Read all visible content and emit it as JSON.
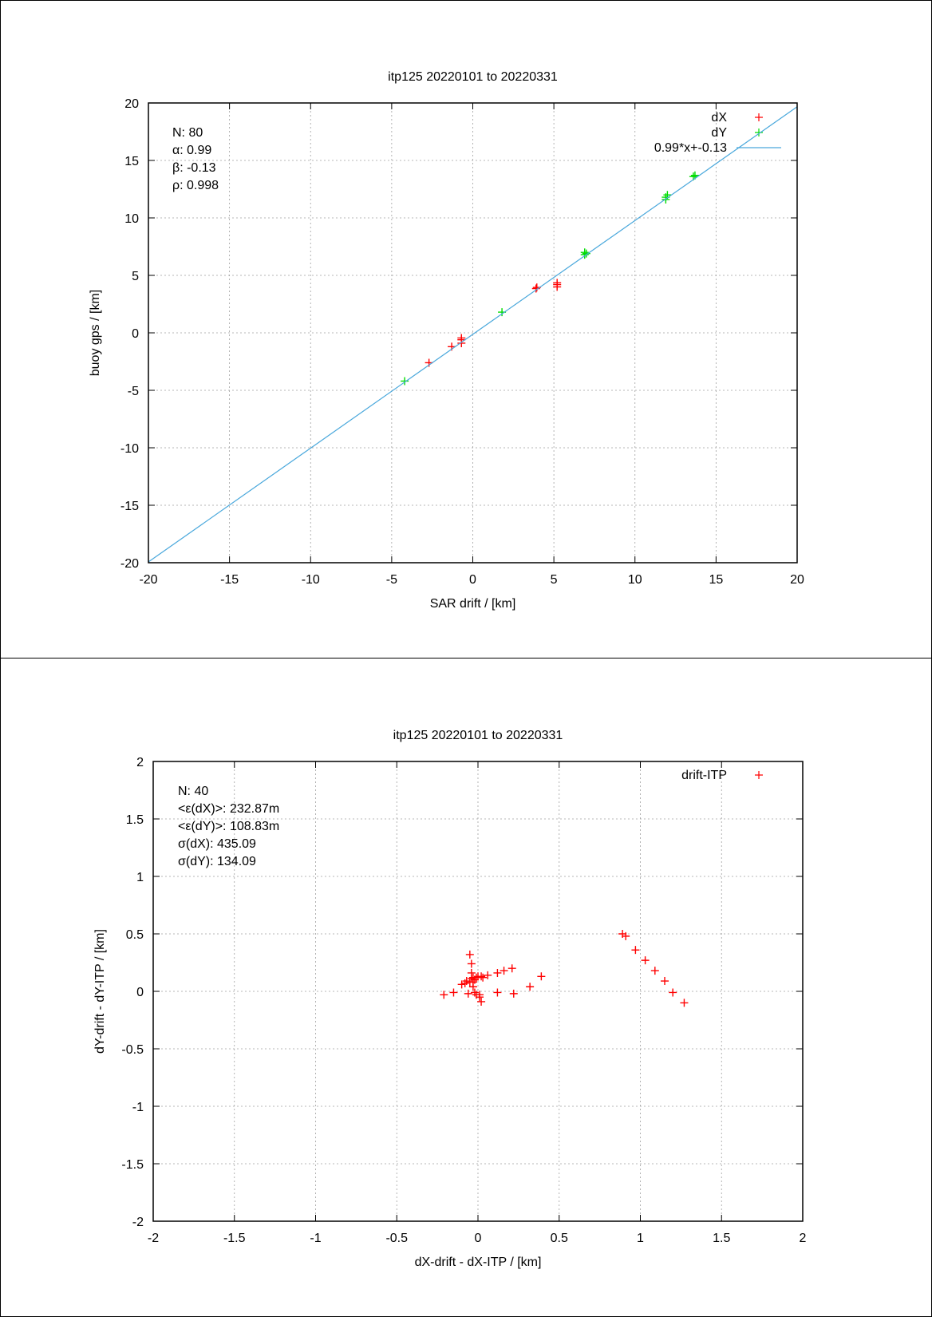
{
  "chart_data": [
    {
      "type": "scatter",
      "title": "itp125 20220101 to 20220331",
      "xlabel": "SAR drift / [km]",
      "ylabel": "buoy gps / [km]",
      "xlim": [
        -20,
        20
      ],
      "ylim": [
        -20,
        20
      ],
      "xticks": [
        "-20",
        "-15",
        "-10",
        "-5",
        "0",
        "5",
        "10",
        "15",
        "20"
      ],
      "yticks": [
        "-20",
        "-15",
        "-10",
        "-5",
        "0",
        "5",
        "10",
        "15",
        "20"
      ],
      "grid": true,
      "legend_position": "top-right",
      "stats": [
        "N: 80",
        "α: 0.99",
        "β: -0.13",
        "ρ: 0.998"
      ],
      "series": [
        {
          "name": "dX",
          "color": "#ff0000",
          "marker": "plus",
          "x": [
            -2.7,
            -1.3,
            -0.7,
            -0.7,
            -0.7,
            3.9,
            3.95,
            5.2,
            5.2,
            5.2
          ],
          "y": [
            -2.6,
            -1.2,
            -0.9,
            -0.6,
            -0.45,
            3.85,
            3.95,
            4.0,
            4.2,
            4.35
          ]
        },
        {
          "name": "dY",
          "color": "#00dd00",
          "marker": "plus",
          "x": [
            -4.2,
            1.8,
            6.9,
            6.9,
            7.0,
            11.9,
            11.9,
            12.0,
            13.6,
            13.7
          ],
          "y": [
            -4.2,
            1.8,
            6.8,
            7.0,
            6.9,
            11.6,
            11.8,
            12.0,
            13.6,
            13.7
          ]
        },
        {
          "name": "0.99*x+-0.13",
          "color": "#4aa8dc",
          "type": "line",
          "slope": 0.99,
          "intercept": -0.13
        }
      ]
    },
    {
      "type": "scatter",
      "title": "itp125 20220101 to 20220331",
      "xlabel": "dX-drift - dX-ITP / [km]",
      "ylabel": "dY-drift - dY-ITP / [km]",
      "xlim": [
        -2,
        2
      ],
      "ylim": [
        -2,
        2
      ],
      "xticks": [
        "-2",
        "-1.5",
        "-1",
        "-0.5",
        "0",
        "0.5",
        "1",
        "1.5",
        "2"
      ],
      "yticks": [
        "-2",
        "-1.5",
        "-1",
        "-0.5",
        "0",
        "0.5",
        "1",
        "1.5",
        "2"
      ],
      "grid": true,
      "legend_position": "top-right",
      "stats": [
        "N: 40",
        "<ε(dX)>:  232.87m",
        "<ε(dY)>: 108.83m",
        "σ(dX):  435.09",
        "σ(dY):  134.09"
      ],
      "series": [
        {
          "name": "drift-ITP",
          "color": "#ff0000",
          "marker": "plus",
          "x": [
            -0.21,
            -0.15,
            -0.1,
            -0.08,
            -0.07,
            -0.06,
            -0.05,
            -0.05,
            -0.04,
            -0.04,
            -0.04,
            -0.03,
            -0.03,
            -0.02,
            -0.02,
            -0.01,
            -0.01,
            0.0,
            0.01,
            0.01,
            0.02,
            0.03,
            0.06,
            0.12,
            0.12,
            0.16,
            0.21,
            0.22,
            0.32,
            0.39,
            0.89,
            0.91,
            0.97,
            1.03,
            1.09,
            1.15,
            1.2,
            1.27,
            0.02,
            -0.03
          ],
          "y": [
            -0.03,
            -0.01,
            0.06,
            0.07,
            0.09,
            -0.02,
            0.08,
            0.32,
            0.24,
            0.16,
            0.11,
            0.12,
            0.08,
            0.1,
            -0.01,
            0.12,
            -0.03,
            0.13,
            -0.05,
            -0.03,
            -0.09,
            0.12,
            0.14,
            0.16,
            -0.01,
            0.18,
            0.2,
            -0.02,
            0.04,
            0.13,
            0.5,
            0.48,
            0.36,
            0.27,
            0.18,
            0.09,
            -0.01,
            -0.1,
            0.13,
            0.04
          ]
        }
      ]
    }
  ]
}
